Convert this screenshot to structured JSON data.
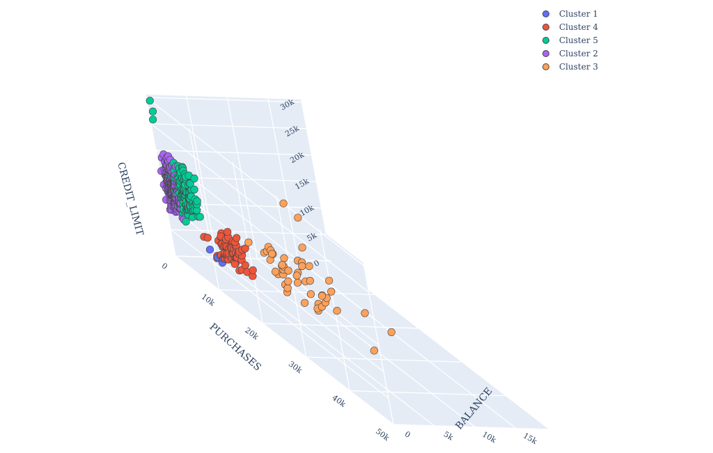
{
  "chart_data": {
    "type": "scatter",
    "dimensions": 3,
    "axes": {
      "x": {
        "label": "PURCHASES",
        "range": [
          0,
          50000
        ],
        "ticks": [
          "0",
          "10k",
          "20k",
          "30k",
          "40k",
          "50k"
        ]
      },
      "y": {
        "label": "BALANCE",
        "range": [
          0,
          19000
        ],
        "ticks": [
          "0",
          "5k",
          "10k",
          "15k"
        ]
      },
      "z": {
        "label": "CREDIT_LIMIT",
        "range": [
          0,
          30500
        ],
        "ticks": [
          "0",
          "5k",
          "10k",
          "15k",
          "20k",
          "25k",
          "30k"
        ]
      }
    },
    "background_color": "#e5ecf6",
    "grid": true,
    "legend_position": "top-right",
    "series": [
      {
        "name": "Cluster 1",
        "color": "#636efa"
      },
      {
        "name": "Cluster 4",
        "color": "#ef553b"
      },
      {
        "name": "Cluster 5",
        "color": "#00cc96"
      },
      {
        "name": "Cluster 2",
        "color": "#ab63fa"
      },
      {
        "name": "Cluster 3",
        "color": "#ffa15a"
      }
    ]
  }
}
